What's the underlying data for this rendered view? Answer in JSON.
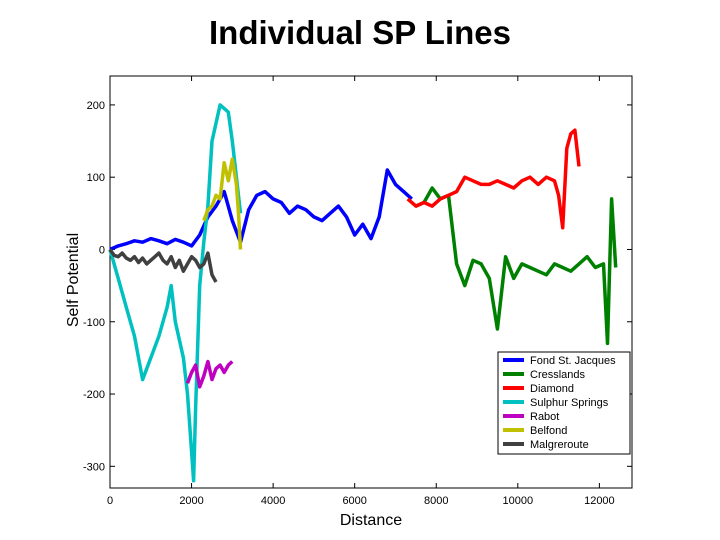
{
  "chart_data": {
    "type": "line",
    "title": "Individual SP Lines",
    "xlabel": "Distance",
    "ylabel": "Self Potential",
    "xlim": [
      0,
      12800
    ],
    "ylim": [
      -330,
      240
    ],
    "xticks": [
      0,
      2000,
      4000,
      6000,
      8000,
      10000,
      12000
    ],
    "xtick_labels": [
      "0",
      "2000",
      "4000",
      "6000",
      "8000",
      "10000",
      "12000"
    ],
    "yticks": [
      200,
      100,
      0,
      -100,
      -200,
      -300
    ],
    "ytick_labels": [
      "200",
      "100",
      "0",
      "-100",
      "-200",
      "-300"
    ],
    "grid": false,
    "legend_position": "bottom-right",
    "series": [
      {
        "name": "Fond St. Jacques",
        "color": "#0000ff",
        "x": [
          0,
          200,
          400,
          600,
          800,
          1000,
          1200,
          1400,
          1600,
          1800,
          2000,
          2200,
          2400,
          2600,
          2800,
          3000,
          3200,
          3400,
          3600,
          3800,
          4000,
          4200,
          4400,
          4600,
          4800,
          5000,
          5200,
          5400,
          5600,
          5800,
          6000,
          6200,
          6400,
          6600,
          6800,
          7000,
          7200,
          7400
        ],
        "y": [
          0,
          5,
          8,
          12,
          10,
          15,
          12,
          8,
          14,
          10,
          5,
          20,
          45,
          60,
          80,
          40,
          10,
          55,
          75,
          80,
          70,
          65,
          50,
          60,
          55,
          45,
          40,
          50,
          60,
          45,
          20,
          35,
          15,
          45,
          110,
          90,
          80,
          70
        ]
      },
      {
        "name": "Cresslands",
        "color": "#008000",
        "x": [
          7500,
          7700,
          7900,
          8100,
          8300,
          8500,
          8700,
          8900,
          9100,
          9300,
          9500,
          9700,
          9900,
          10100,
          10300,
          10500,
          10700,
          10900,
          11100,
          11300,
          11500,
          11700,
          11900,
          12100,
          12200,
          12300,
          12400
        ],
        "y": [
          60,
          65,
          85,
          70,
          75,
          -20,
          -50,
          -15,
          -20,
          -40,
          -110,
          -10,
          -40,
          -20,
          -25,
          -30,
          -35,
          -20,
          -25,
          -30,
          -20,
          -10,
          -25,
          -20,
          -130,
          70,
          -25
        ]
      },
      {
        "name": "Diamond",
        "color": "#ff0000",
        "x": [
          7300,
          7500,
          7700,
          7900,
          8100,
          8300,
          8500,
          8700,
          8900,
          9100,
          9300,
          9500,
          9700,
          9900,
          10100,
          10300,
          10500,
          10700,
          10900,
          11000,
          11100,
          11200,
          11300,
          11400,
          11500
        ],
        "y": [
          70,
          60,
          65,
          60,
          70,
          75,
          80,
          100,
          95,
          90,
          90,
          95,
          90,
          85,
          95,
          100,
          90,
          100,
          95,
          75,
          30,
          140,
          160,
          165,
          115
        ]
      },
      {
        "name": "Sulphur Springs",
        "color": "#00c0c0",
        "x": [
          0,
          200,
          400,
          600,
          800,
          1000,
          1200,
          1400,
          1500,
          1600,
          1800,
          1900,
          2000,
          2050,
          2100,
          2200,
          2300,
          2400,
          2500,
          2700,
          2900,
          3000,
          3100,
          3200
        ],
        "y": [
          0,
          -40,
          -80,
          -120,
          -180,
          -150,
          -120,
          -80,
          -50,
          -100,
          -150,
          -200,
          -280,
          -320,
          -220,
          -50,
          10,
          60,
          150,
          200,
          190,
          150,
          100,
          50
        ]
      },
      {
        "name": "Rabot",
        "color": "#c000c0",
        "x": [
          1900,
          2000,
          2100,
          2200,
          2300,
          2400,
          2500,
          2600,
          2700,
          2800,
          2900,
          3000
        ],
        "y": [
          -185,
          -170,
          -160,
          -190,
          -175,
          -155,
          -180,
          -165,
          -160,
          -170,
          -160,
          -155
        ]
      },
      {
        "name": "Belfond",
        "color": "#c0c000",
        "x": [
          2300,
          2400,
          2500,
          2600,
          2700,
          2800,
          2900,
          3000,
          3100,
          3150,
          3200
        ],
        "y": [
          40,
          55,
          60,
          75,
          70,
          120,
          95,
          125,
          90,
          50,
          0
        ]
      },
      {
        "name": "Malgreroute",
        "color": "#404040",
        "x": [
          0,
          100,
          200,
          300,
          400,
          500,
          600,
          700,
          800,
          900,
          1000,
          1100,
          1200,
          1300,
          1400,
          1500,
          1600,
          1700,
          1800,
          1900,
          2000,
          2100,
          2200,
          2300,
          2400,
          2500,
          2600
        ],
        "y": [
          0,
          -8,
          -10,
          -5,
          -12,
          -15,
          -10,
          -18,
          -12,
          -20,
          -15,
          -10,
          -5,
          -15,
          -20,
          -10,
          -25,
          -15,
          -30,
          -20,
          -10,
          -15,
          -25,
          -20,
          -5,
          -35,
          -45
        ]
      }
    ]
  }
}
